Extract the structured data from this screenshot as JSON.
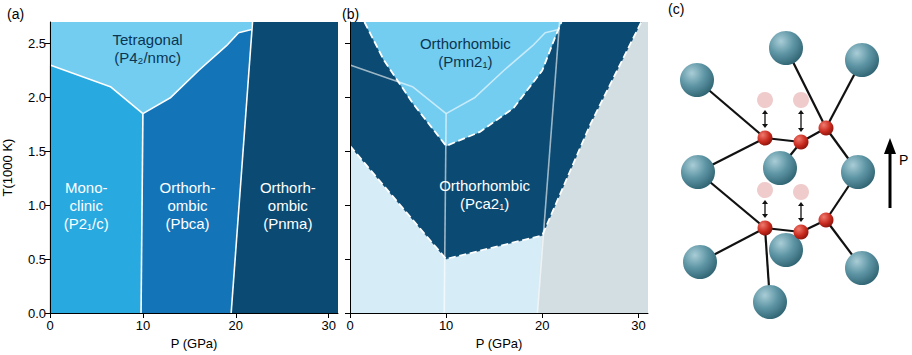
{
  "chart_data": [
    {
      "type": "area",
      "title": "(a)",
      "x_label": "P (GPa)",
      "y_label": "T(1000 K)",
      "xlim": [
        0,
        31
      ],
      "ylim": [
        0,
        2.7
      ],
      "xticks": [
        0,
        10,
        20,
        30
      ],
      "yticks": [
        {
          "value": 0,
          "label": "0.0"
        },
        0.5,
        {
          "value": 1,
          "label": "1.0"
        },
        1.5,
        {
          "value": 2,
          "label": "2.0"
        },
        2.5
      ],
      "regions": [
        {
          "label": [
            "Tetragonal",
            "(P4₂/nmc)"
          ],
          "color": "#73cdf0",
          "polygon": [
            [
              0,
              2.3
            ],
            [
              6.5,
              2.1
            ],
            [
              10,
              1.85
            ],
            [
              13,
              2.0
            ],
            [
              16,
              2.25
            ],
            [
              19,
              2.48
            ],
            [
              20.3,
              2.6
            ],
            [
              21.7,
              2.63
            ],
            [
              21.8,
              2.7
            ],
            [
              0,
              2.7
            ]
          ]
        },
        {
          "label": [
            "Mono-",
            "clinic",
            "(P2₁/c)"
          ],
          "color": "#28a9e0",
          "polygon": [
            [
              0,
              0
            ],
            [
              9.8,
              0
            ],
            [
              10,
              1.85
            ],
            [
              6.5,
              2.1
            ],
            [
              0,
              2.3
            ]
          ]
        },
        {
          "label": [
            "Orthorh-",
            "ombic",
            "(Pbca)"
          ],
          "color": "#1474b8",
          "polygon": [
            [
              9.8,
              0
            ],
            [
              19.5,
              0
            ],
            [
              21.7,
              2.63
            ],
            [
              20.3,
              2.6
            ],
            [
              19,
              2.48
            ],
            [
              16,
              2.25
            ],
            [
              13,
              2.0
            ],
            [
              10,
              1.85
            ]
          ]
        },
        {
          "label": [
            "Orthorh-",
            "ombic",
            "(Pnma)"
          ],
          "color": "#0b4a72",
          "polygon": [
            [
              19.5,
              0
            ],
            [
              31,
              0
            ],
            [
              31,
              2.7
            ],
            [
              21.8,
              2.7
            ],
            [
              21.7,
              2.63
            ]
          ]
        }
      ],
      "boundaries": [
        {
          "line_style": "solid",
          "points": [
            [
              0,
              2.3
            ],
            [
              6.5,
              2.1
            ],
            [
              10,
              1.85
            ]
          ]
        },
        {
          "line_style": "solid",
          "points": [
            [
              9.8,
              0
            ],
            [
              10,
              1.85
            ]
          ]
        },
        {
          "line_style": "solid",
          "points": [
            [
              10,
              1.85
            ],
            [
              13,
              2.0
            ],
            [
              16,
              2.25
            ],
            [
              19,
              2.48
            ],
            [
              20.3,
              2.6
            ],
            [
              21.7,
              2.63
            ]
          ]
        },
        {
          "line_style": "solid",
          "points": [
            [
              19.5,
              0
            ],
            [
              21.8,
              2.7
            ]
          ]
        }
      ]
    },
    {
      "type": "area",
      "title": "(b)",
      "x_label": "P (GPa)",
      "tick_labels": "x",
      "xlim": [
        0,
        31
      ],
      "ylim": [
        0,
        2.7
      ],
      "xticks": [
        0,
        10,
        20,
        30
      ],
      "yticks": [
        0,
        0.5,
        1,
        1.5,
        2,
        2.5
      ],
      "regions": [
        {
          "color": "#d6edf8",
          "polygon": [
            [
              0,
              0
            ],
            [
              19.5,
              0
            ],
            [
              20,
              0.72
            ],
            [
              10,
              0.5
            ],
            [
              0,
              1.55
            ]
          ]
        },
        {
          "color": "#d3dee2",
          "polygon": [
            [
              19.5,
              0
            ],
            [
              31,
              0
            ],
            [
              31,
              2.7
            ],
            [
              30.3,
              2.7
            ],
            [
              25,
              1.75
            ],
            [
              20,
              0.72
            ]
          ]
        },
        {
          "label": [
            "Orthorhombic",
            "(Pca2₁)"
          ],
          "color": "#0b4a72",
          "polygon": [
            [
              0,
              1.55
            ],
            [
              10,
              0.5
            ],
            [
              20,
              0.72
            ],
            [
              25,
              1.75
            ],
            [
              30.3,
              2.7
            ],
            [
              0,
              2.7
            ]
          ]
        },
        {
          "label": [
            "Orthorhombic",
            "(Pmn2₁)"
          ],
          "color": "#73cdf0",
          "polygon": [
            [
              1.5,
              2.7
            ],
            [
              3.5,
              2.35
            ],
            [
              6.5,
              1.95
            ],
            [
              10,
              1.55
            ],
            [
              13.5,
              1.68
            ],
            [
              17,
              1.9
            ],
            [
              20,
              2.25
            ],
            [
              21.3,
              2.55
            ],
            [
              22,
              2.7
            ]
          ]
        }
      ],
      "boundaries": [
        {
          "line_style": "solid",
          "points": [
            [
              0,
              2.3
            ],
            [
              6.5,
              2.1
            ],
            [
              10,
              1.85
            ]
          ]
        },
        {
          "line_style": "solid",
          "points": [
            [
              9.8,
              0
            ],
            [
              10,
              1.85
            ]
          ]
        },
        {
          "line_style": "solid",
          "points": [
            [
              10,
              1.85
            ],
            [
              13,
              2.0
            ],
            [
              16,
              2.25
            ],
            [
              19,
              2.48
            ],
            [
              20.3,
              2.6
            ],
            [
              21.7,
              2.63
            ]
          ]
        },
        {
          "line_style": "solid",
          "points": [
            [
              19.5,
              0
            ],
            [
              21.8,
              2.7
            ]
          ]
        },
        {
          "line_style": "dashed",
          "points": [
            [
              0,
              1.55
            ],
            [
              10,
              0.5
            ],
            [
              20,
              0.72
            ],
            [
              25,
              1.75
            ],
            [
              30.3,
              2.7
            ]
          ]
        },
        {
          "line_style": "dashed",
          "points": [
            [
              1.5,
              2.7
            ],
            [
              3.5,
              2.35
            ],
            [
              6.5,
              1.95
            ],
            [
              10,
              1.55
            ],
            [
              13.5,
              1.68
            ],
            [
              17,
              1.9
            ],
            [
              20,
              2.25
            ],
            [
              21.3,
              2.55
            ],
            [
              22,
              2.7
            ]
          ]
        }
      ]
    }
  ],
  "panel_c": {
    "title": "(c)",
    "arrow_label": "P"
  }
}
